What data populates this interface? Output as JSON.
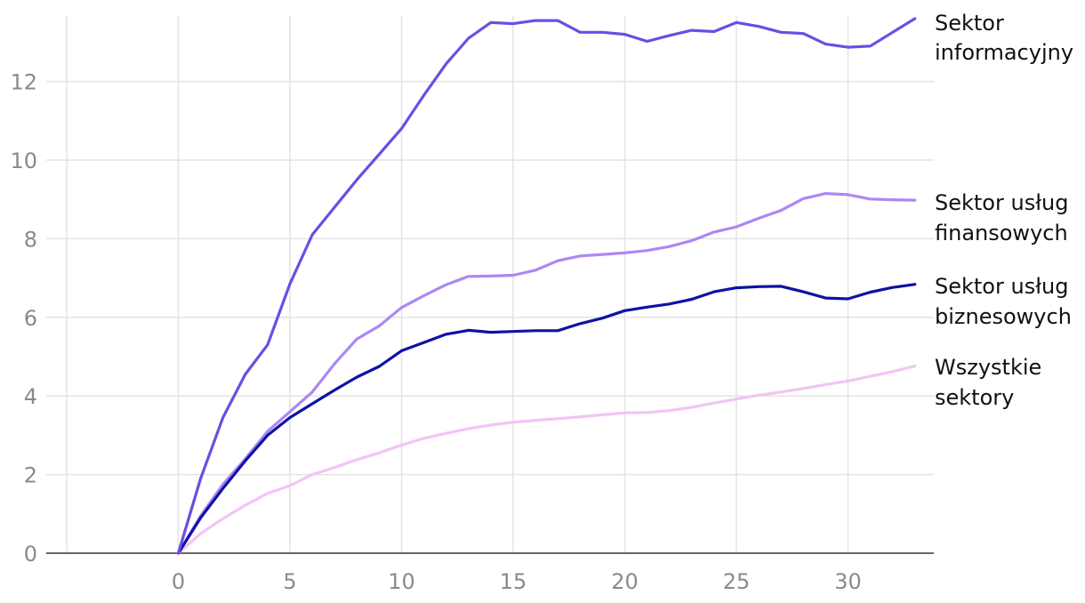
{
  "chart_data": {
    "type": "line",
    "title": "",
    "xlabel": "",
    "ylabel": "",
    "xlim": [
      -5,
      33
    ],
    "ylim": [
      0,
      13.6
    ],
    "x_ticks": [
      0,
      5,
      10,
      15,
      20,
      25,
      30
    ],
    "y_ticks": [
      0,
      2,
      4,
      6,
      8,
      10,
      12
    ],
    "grid": {
      "vertical": true,
      "horizontal": true
    },
    "legend": "direct-labels-right",
    "x": [
      0,
      1,
      2,
      3,
      4,
      5,
      6,
      7,
      8,
      9,
      10,
      11,
      12,
      13,
      14,
      15,
      16,
      17,
      18,
      19,
      20,
      21,
      22,
      23,
      24,
      25,
      26,
      27,
      28,
      29,
      30,
      31,
      32,
      33
    ],
    "series": [
      {
        "name_lines": [
          "Sektor",
          "informacyjny"
        ],
        "color": "#6a4ee3",
        "values": [
          0,
          1.9,
          3.45,
          4.55,
          5.3,
          6.85,
          8.1,
          8.8,
          9.5,
          10.15,
          10.8,
          11.65,
          12.45,
          13.1,
          13.5,
          13.47,
          13.55,
          13.55,
          13.25,
          13.25,
          13.2,
          13.02,
          13.17,
          13.3,
          13.27,
          13.5,
          13.4,
          13.25,
          13.22,
          12.95,
          12.87,
          12.9,
          13.25,
          13.6
        ]
      },
      {
        "name_lines": [
          "Sektor usług",
          "finansowych"
        ],
        "color": "#ad87f3",
        "values": [
          0,
          0.95,
          1.75,
          2.4,
          3.1,
          3.6,
          4.1,
          4.82,
          5.45,
          5.78,
          6.25,
          6.55,
          6.83,
          7.04,
          7.05,
          7.07,
          7.2,
          7.44,
          7.56,
          7.6,
          7.64,
          7.7,
          7.8,
          7.95,
          8.17,
          8.3,
          8.52,
          8.72,
          9.02,
          9.15,
          9.12,
          9.01,
          8.99,
          8.98
        ]
      },
      {
        "name_lines": [
          "Sektor usług",
          "biznesowych"
        ],
        "color": "#0d12a5",
        "values": [
          0,
          0.9,
          1.65,
          2.35,
          3.0,
          3.45,
          3.8,
          4.15,
          4.48,
          4.75,
          5.15,
          5.36,
          5.57,
          5.67,
          5.62,
          5.64,
          5.66,
          5.66,
          5.84,
          5.98,
          6.17,
          6.26,
          6.34,
          6.46,
          6.65,
          6.75,
          6.78,
          6.79,
          6.65,
          6.49,
          6.47,
          6.64,
          6.76,
          6.84
        ]
      },
      {
        "name_lines": [
          "Wszystkie",
          "sektory"
        ],
        "color": "#f2c4f7",
        "values": [
          0,
          0.5,
          0.88,
          1.22,
          1.52,
          1.72,
          2.0,
          2.18,
          2.38,
          2.55,
          2.75,
          2.92,
          3.05,
          3.17,
          3.26,
          3.33,
          3.38,
          3.42,
          3.47,
          3.52,
          3.57,
          3.58,
          3.63,
          3.71,
          3.82,
          3.92,
          4.02,
          4.1,
          4.19,
          4.29,
          4.38,
          4.5,
          4.62,
          4.76
        ]
      }
    ]
  }
}
